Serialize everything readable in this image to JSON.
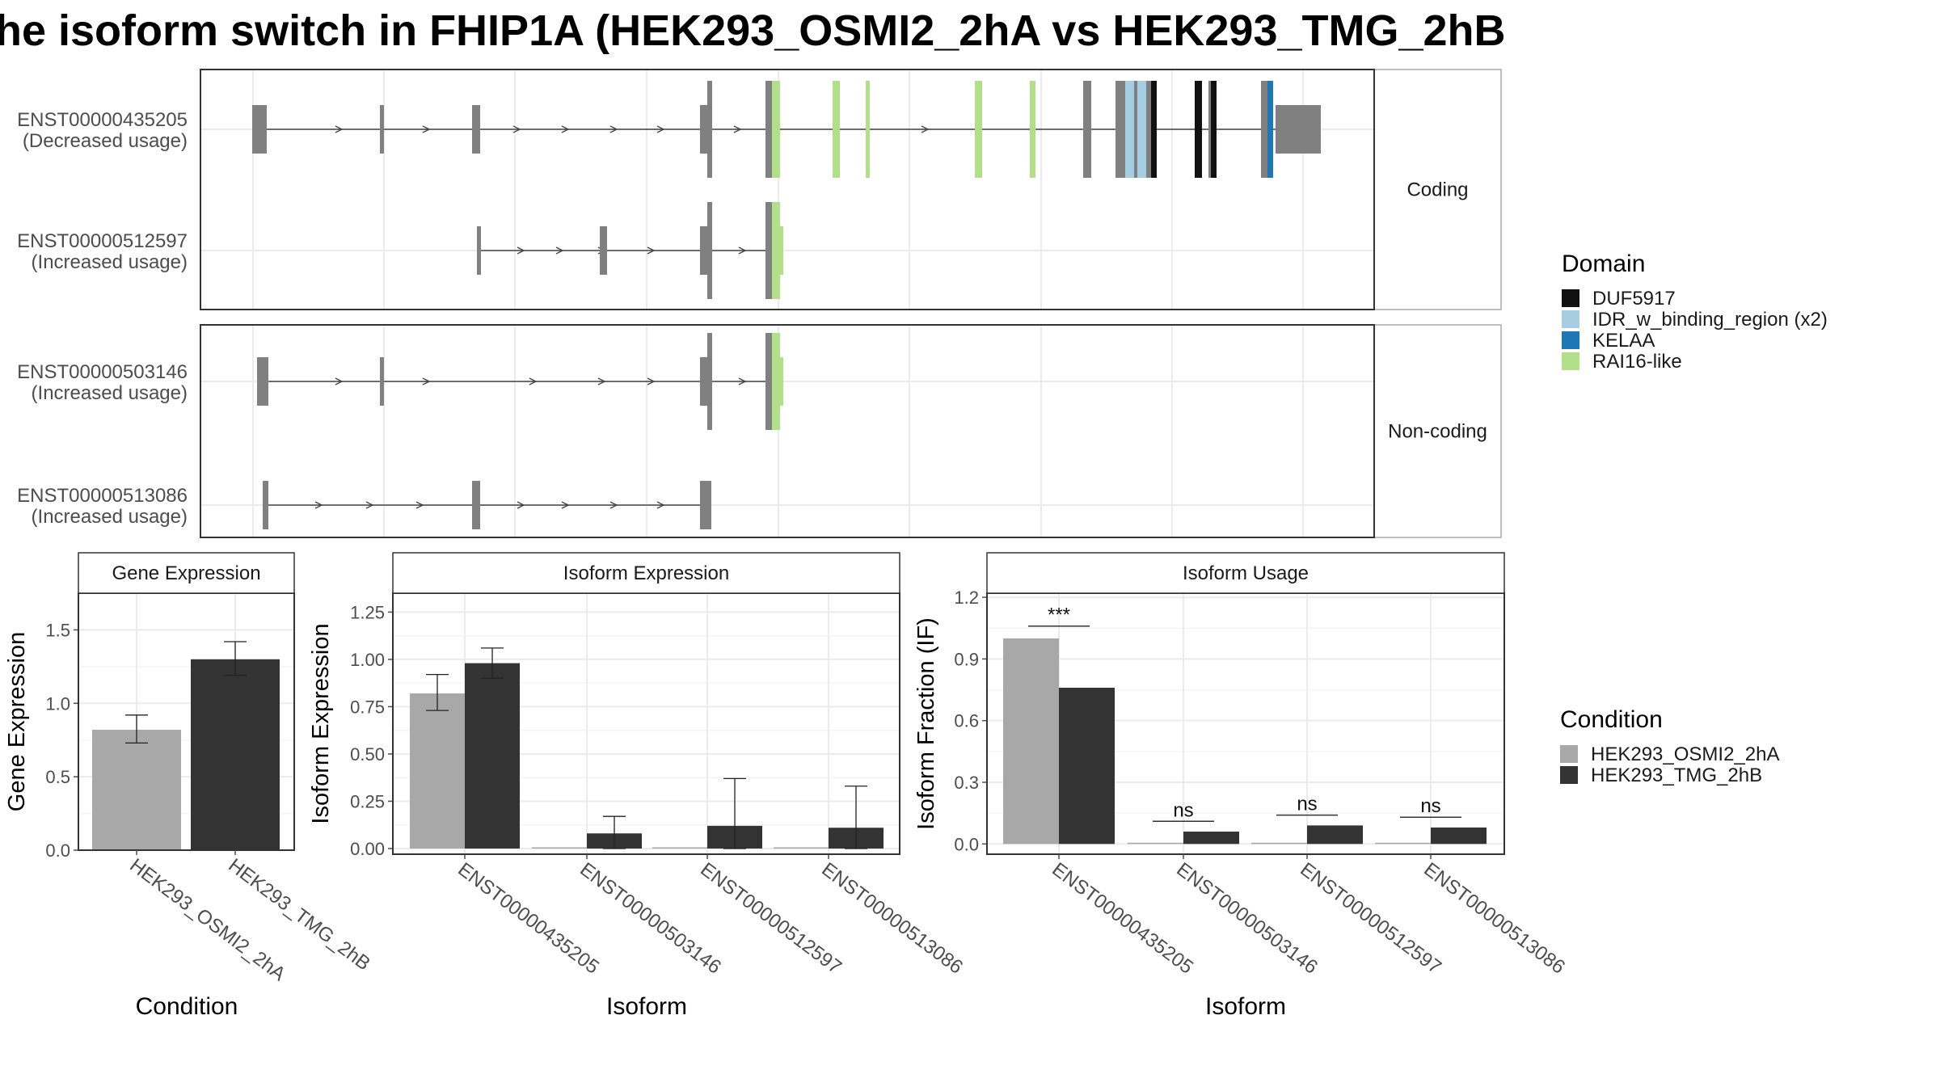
{
  "title": "he isoform switch in FHIP1A (HEK293_OSMI2_2hA vs HEK293_TMG_2hB",
  "structure": {
    "facets": [
      "Coding",
      "Non-coding"
    ],
    "transcripts": [
      {
        "id": "ENST00000435205",
        "usage": "(Decreased usage)",
        "facet": "Coding"
      },
      {
        "id": "ENST00000512597",
        "usage": "(Increased usage)",
        "facet": "Coding"
      },
      {
        "id": "ENST00000503146",
        "usage": "(Increased usage)",
        "facet": "Non-coding"
      },
      {
        "id": "ENST00000513086",
        "usage": "(Increased usage)",
        "facet": "Non-coding"
      }
    ]
  },
  "legend_domain": {
    "title": "Domain",
    "entries": [
      {
        "label": "DUF5917",
        "color": "#111111"
      },
      {
        "label": "IDR_w_binding_region (x2)",
        "color": "#a6cee3"
      },
      {
        "label": "KELAA",
        "color": "#1f78b4"
      },
      {
        "label": "RAI16-like",
        "color": "#b2df8a"
      }
    ]
  },
  "legend_condition": {
    "title": "Condition",
    "entries": [
      {
        "label": "HEK293_OSMI2_2hA",
        "color": "#a8a8a8"
      },
      {
        "label": "HEK293_TMG_2hB",
        "color": "#333333"
      }
    ]
  },
  "colors": {
    "exon": "#808080",
    "intron": "#444444"
  },
  "chart_data": [
    {
      "type": "bar",
      "panel": "Gene Expression",
      "xlabel": "Condition",
      "ylabel": "Gene Expression",
      "categories": [
        "HEK293_OSMI2_2hA",
        "HEK293_TMG_2hB"
      ],
      "values": [
        0.82,
        1.3
      ],
      "errors": [
        [
          0.73,
          0.92
        ],
        [
          1.19,
          1.42
        ]
      ],
      "yticks": [
        "0.0",
        "0.5",
        "1.0",
        "1.5"
      ],
      "ylim": [
        0,
        1.75
      ]
    },
    {
      "type": "bar",
      "panel": "Isoform Expression",
      "xlabel": "Isoform",
      "ylabel": "Isoform Expression",
      "categories": [
        "ENST00000435205",
        "ENST00000503146",
        "ENST00000512597",
        "ENST00000513086"
      ],
      "series": [
        {
          "name": "HEK293_OSMI2_2hA",
          "values": [
            0.82,
            0.0,
            0.0,
            0.0
          ],
          "errors": [
            [
              0.73,
              0.92
            ],
            null,
            null,
            null
          ]
        },
        {
          "name": "HEK293_TMG_2hB",
          "values": [
            0.98,
            0.08,
            0.12,
            0.11
          ],
          "errors": [
            [
              0.9,
              1.06
            ],
            [
              0.0,
              0.17
            ],
            [
              0.0,
              0.37
            ],
            [
              0.0,
              0.33
            ]
          ]
        }
      ],
      "yticks": [
        "0.00",
        "0.25",
        "0.50",
        "0.75",
        "1.00",
        "1.25"
      ],
      "ylim": [
        -0.03,
        1.35
      ]
    },
    {
      "type": "bar",
      "panel": "Isoform Usage",
      "xlabel": "Isoform",
      "ylabel": "Isoform Fraction (IF)",
      "categories": [
        "ENST00000435205",
        "ENST00000503146",
        "ENST00000512597",
        "ENST00000513086"
      ],
      "series": [
        {
          "name": "HEK293_OSMI2_2hA",
          "values": [
            1.0,
            0.0,
            0.0,
            0.0
          ]
        },
        {
          "name": "HEK293_TMG_2hB",
          "values": [
            0.76,
            0.06,
            0.09,
            0.08
          ]
        }
      ],
      "significance": [
        {
          "label": "***",
          "y": 1.06
        },
        {
          "label": "ns",
          "y": 0.11
        },
        {
          "label": "ns",
          "y": 0.14
        },
        {
          "label": "ns",
          "y": 0.13
        }
      ],
      "yticks": [
        "0.0",
        "0.3",
        "0.6",
        "0.9",
        "1.2"
      ],
      "ylim": [
        -0.05,
        1.22
      ]
    }
  ]
}
